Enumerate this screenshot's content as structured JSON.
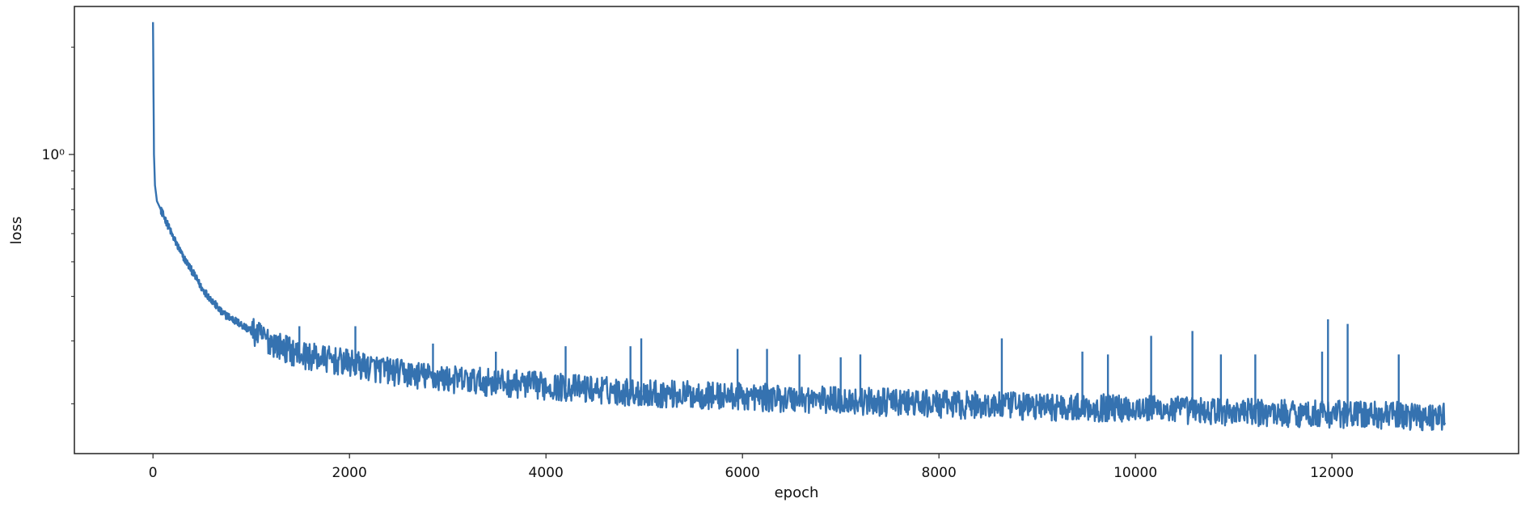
{
  "chart_data": {
    "type": "line",
    "title": "",
    "xlabel": "epoch",
    "ylabel": "loss",
    "xlim": [
      -800,
      13900
    ],
    "ylim": [
      0.145,
      2.6
    ],
    "yscale": "log",
    "grid": false,
    "legend": "none",
    "x_ticks": [
      0,
      2000,
      4000,
      6000,
      8000,
      10000,
      12000
    ],
    "x_tick_labels": [
      "0",
      "2000",
      "4000",
      "6000",
      "8000",
      "10000",
      "12000"
    ],
    "y_ticks": [
      1
    ],
    "y_tick_labels": [
      "10⁰"
    ],
    "series": [
      {
        "color": "#3572b0",
        "x": [
          0,
          5,
          10,
          20,
          40,
          60,
          100,
          200,
          300,
          500,
          700,
          1000,
          1300,
          1500,
          2000,
          2500,
          3000,
          3500,
          4000,
          5000,
          6000,
          7000,
          8000,
          9000,
          10000,
          11000,
          12000,
          13000,
          13150
        ],
        "y": [
          2.35,
          1.5,
          1.0,
          0.82,
          0.74,
          0.72,
          0.68,
          0.59,
          0.52,
          0.42,
          0.36,
          0.32,
          0.29,
          0.275,
          0.26,
          0.245,
          0.235,
          0.23,
          0.225,
          0.215,
          0.21,
          0.205,
          0.2,
          0.197,
          0.195,
          0.19,
          0.188,
          0.185,
          0.185
        ]
      }
    ],
    "spikes": [
      {
        "x": 1490,
        "y": 0.33
      },
      {
        "x": 2060,
        "y": 0.33
      },
      {
        "x": 2850,
        "y": 0.295
      },
      {
        "x": 3490,
        "y": 0.28
      },
      {
        "x": 4200,
        "y": 0.29
      },
      {
        "x": 4860,
        "y": 0.29
      },
      {
        "x": 4970,
        "y": 0.305
      },
      {
        "x": 5950,
        "y": 0.285
      },
      {
        "x": 6250,
        "y": 0.285
      },
      {
        "x": 6580,
        "y": 0.275
      },
      {
        "x": 7000,
        "y": 0.27
      },
      {
        "x": 7200,
        "y": 0.275
      },
      {
        "x": 8640,
        "y": 0.305
      },
      {
        "x": 9460,
        "y": 0.28
      },
      {
        "x": 9720,
        "y": 0.275
      },
      {
        "x": 10160,
        "y": 0.31
      },
      {
        "x": 10580,
        "y": 0.32
      },
      {
        "x": 10870,
        "y": 0.275
      },
      {
        "x": 11220,
        "y": 0.275
      },
      {
        "x": 11900,
        "y": 0.28
      },
      {
        "x": 11960,
        "y": 0.345
      },
      {
        "x": 12160,
        "y": 0.335
      },
      {
        "x": 12680,
        "y": 0.275
      }
    ],
    "noise": {
      "y_ratio_range": [
        0.91,
        1.09
      ],
      "start_x": 1000
    }
  }
}
